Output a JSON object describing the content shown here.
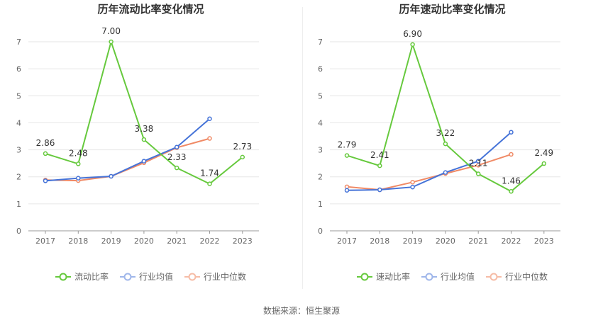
{
  "source_label": "数据来源：恒生聚源",
  "colors": {
    "primary": "#66c93d",
    "industry_avg": "#4573d8",
    "industry_median": "#f08a66"
  },
  "chart_data": [
    {
      "type": "line",
      "title": "历年流动比率变化情况",
      "x": [
        "2017",
        "2018",
        "2019",
        "2020",
        "2021",
        "2022",
        "2023"
      ],
      "ylim": [
        0,
        7
      ],
      "yticks": [
        "0",
        "1",
        "2",
        "3",
        "4",
        "5",
        "6",
        "7"
      ],
      "grid": true,
      "legend_position": "bottom",
      "series": [
        {
          "name": "流动比率",
          "color": "#66c93d",
          "values": [
            2.86,
            2.48,
            7.0,
            3.38,
            2.33,
            1.74,
            2.73
          ],
          "labels": [
            "2.86",
            "2.48",
            "7.00",
            "3.38",
            "2.33",
            "1.74",
            "2.73"
          ]
        },
        {
          "name": "行业均值",
          "color": "#4573d8",
          "values": [
            1.85,
            1.95,
            2.02,
            2.58,
            3.1,
            4.15,
            null
          ]
        },
        {
          "name": "行业中位数",
          "color": "#f08a66",
          "values": [
            1.88,
            1.86,
            2.02,
            2.52,
            3.08,
            3.42,
            null
          ]
        }
      ]
    },
    {
      "type": "line",
      "title": "历年速动比率变化情况",
      "x": [
        "2017",
        "2018",
        "2019",
        "2020",
        "2021",
        "2022",
        "2023"
      ],
      "ylim": [
        0,
        7
      ],
      "yticks": [
        "0",
        "1",
        "2",
        "3",
        "4",
        "5",
        "6",
        "7"
      ],
      "grid": true,
      "legend_position": "bottom",
      "series": [
        {
          "name": "速动比率",
          "color": "#66c93d",
          "values": [
            2.79,
            2.41,
            6.9,
            3.22,
            2.11,
            1.46,
            2.49
          ],
          "labels": [
            "2.79",
            "2.41",
            "6.90",
            "3.22",
            "2.11",
            "1.46",
            "2.49"
          ]
        },
        {
          "name": "行业均值",
          "color": "#4573d8",
          "values": [
            1.5,
            1.52,
            1.62,
            2.16,
            2.58,
            3.65,
            null
          ]
        },
        {
          "name": "行业中位数",
          "color": "#f08a66",
          "values": [
            1.63,
            1.52,
            1.8,
            2.12,
            2.43,
            2.83,
            null
          ]
        }
      ]
    }
  ]
}
